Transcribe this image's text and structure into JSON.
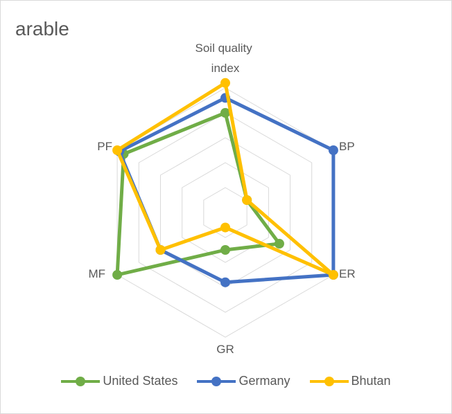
{
  "chart_data": {
    "type": "radar",
    "title": "arable",
    "axes": [
      "Soil quality index",
      "BP",
      "ER",
      "GR",
      "MF",
      "PF"
    ],
    "rmax": 5,
    "rings": 5,
    "grid": true,
    "legend_position": "bottom",
    "series": [
      {
        "name": "United States",
        "color": "#70ad47",
        "values": [
          4.0,
          1.0,
          2.5,
          1.5,
          5.0,
          4.7
        ]
      },
      {
        "name": "Germany",
        "color": "#4472c4",
        "values": [
          4.6,
          5.0,
          5.0,
          2.8,
          3.0,
          4.9
        ]
      },
      {
        "name": "Bhutan",
        "color": "#ffc000",
        "values": [
          5.2,
          1.0,
          5.0,
          0.6,
          3.0,
          5.0
        ]
      }
    ]
  }
}
